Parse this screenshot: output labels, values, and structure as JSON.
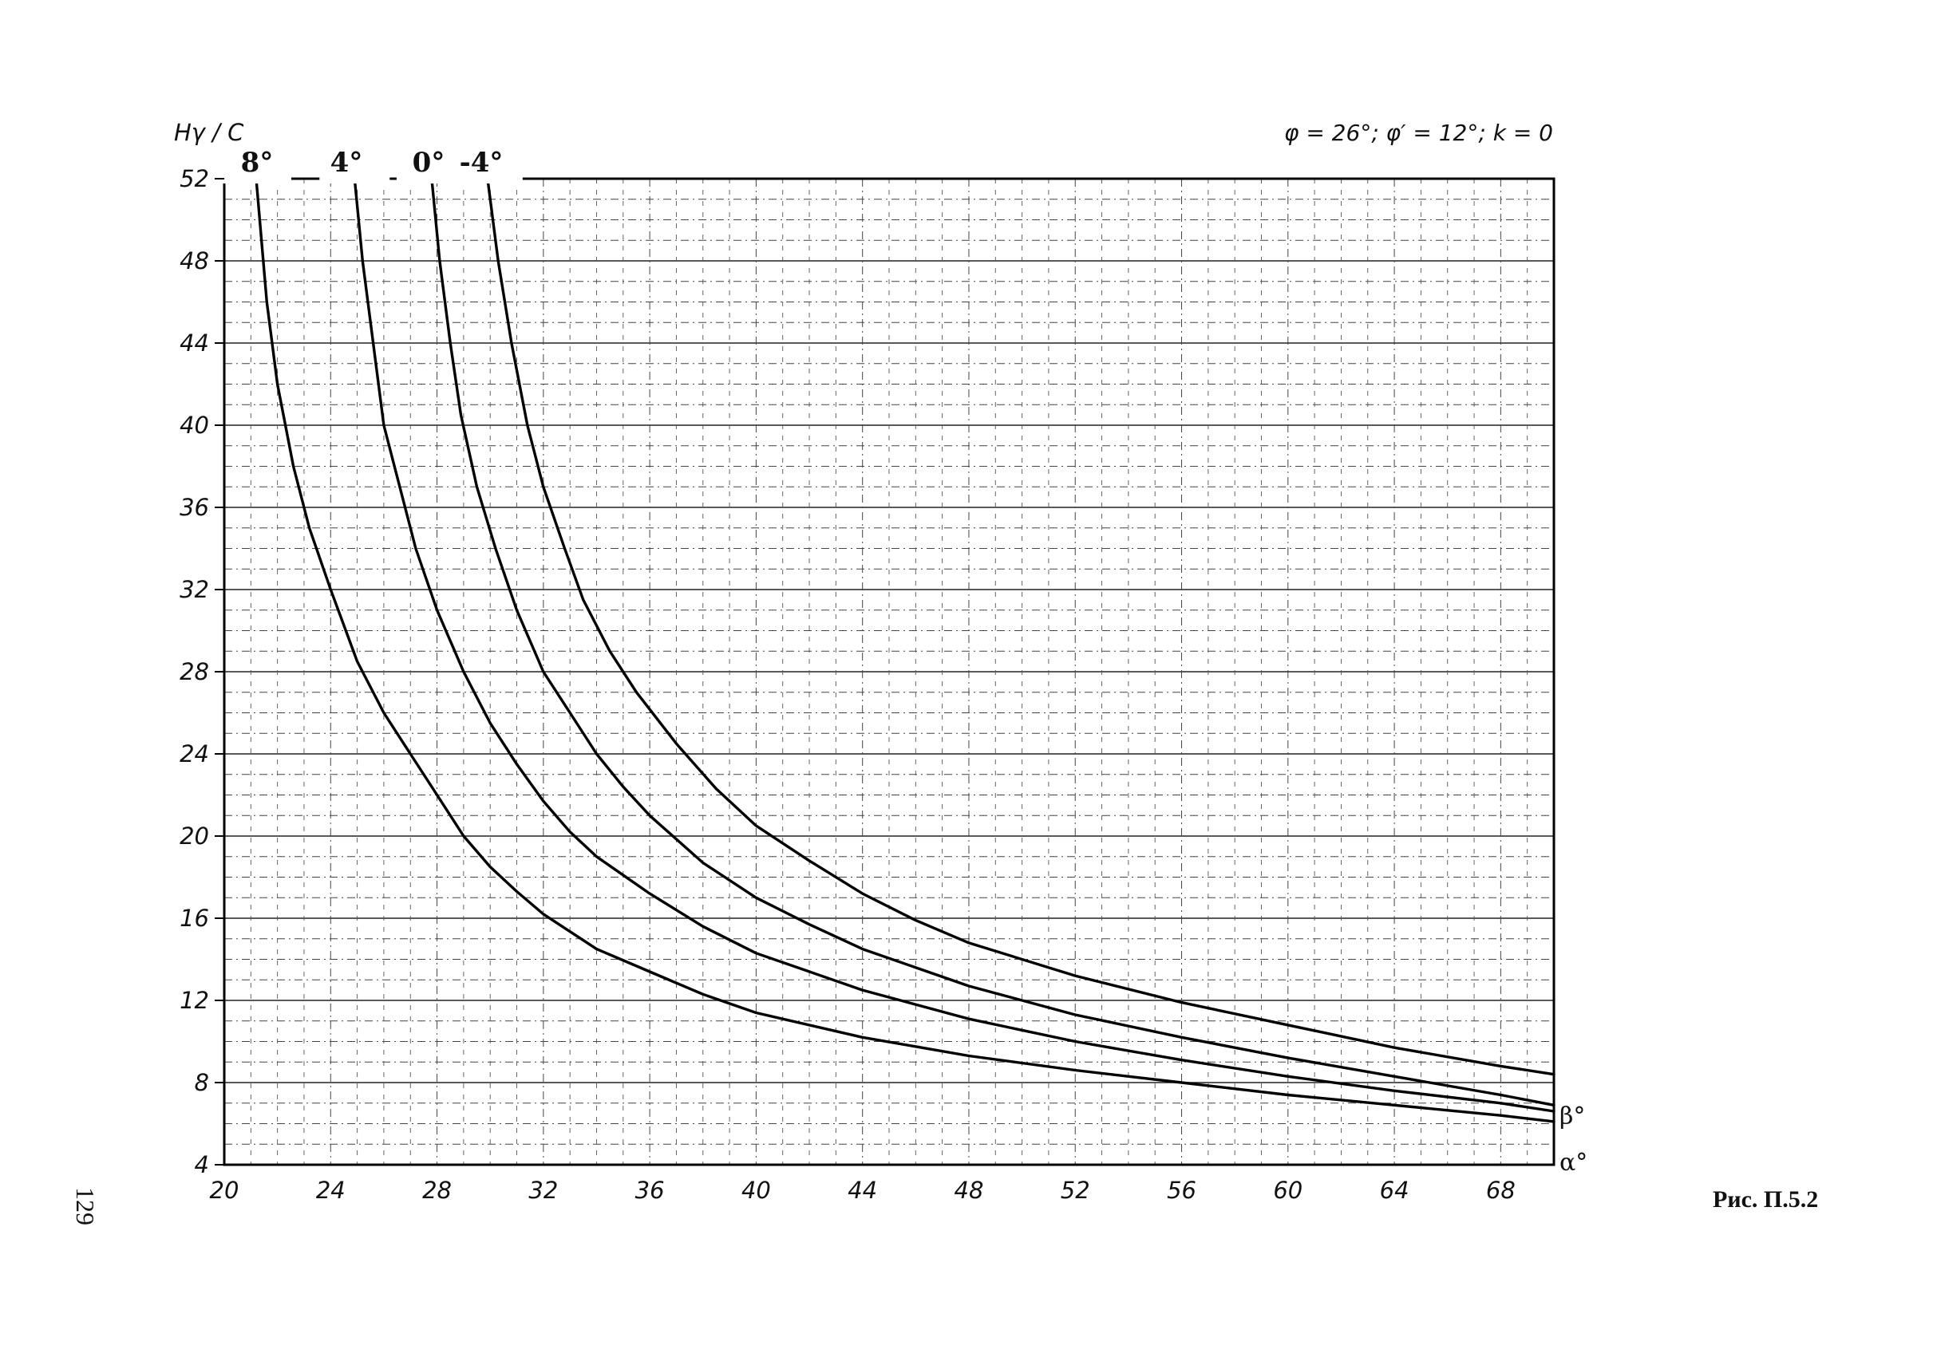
{
  "chart_data": {
    "type": "line",
    "ylabel": "Hγ / C",
    "params": "φ = 26°; φ′ = 12°; k = 0",
    "x_axis_name": "α°",
    "series_axis_name": "β°",
    "xlim": [
      20,
      70
    ],
    "ylim": [
      4,
      52
    ],
    "x_ticks": [
      "20",
      "24",
      "28",
      "32",
      "36",
      "40",
      "44",
      "48",
      "52",
      "56",
      "60",
      "64",
      "68"
    ],
    "y_ticks": [
      "4",
      "8",
      "12",
      "16",
      "20",
      "24",
      "28",
      "32",
      "36",
      "40",
      "44",
      "48",
      "52"
    ],
    "grid": true,
    "series": [
      {
        "name": "8°",
        "points": [
          [
            21.2,
            52
          ],
          [
            21.6,
            46
          ],
          [
            22,
            42
          ],
          [
            22.6,
            38
          ],
          [
            23.2,
            35
          ],
          [
            24,
            32
          ],
          [
            25,
            28.5
          ],
          [
            26,
            26
          ],
          [
            27,
            24
          ],
          [
            28,
            22
          ],
          [
            29,
            20
          ],
          [
            30,
            18.5
          ],
          [
            31,
            17.3
          ],
          [
            32,
            16.2
          ],
          [
            34,
            14.5
          ],
          [
            36,
            13.4
          ],
          [
            38,
            12.3
          ],
          [
            40,
            11.4
          ],
          [
            44,
            10.2
          ],
          [
            48,
            9.3
          ],
          [
            52,
            8.6
          ],
          [
            56,
            8
          ],
          [
            60,
            7.4
          ],
          [
            64,
            6.9
          ],
          [
            68,
            6.4
          ],
          [
            70,
            6.1
          ]
        ]
      },
      {
        "name": "4°",
        "points": [
          [
            24.9,
            52
          ],
          [
            25.2,
            48
          ],
          [
            25.6,
            44
          ],
          [
            26,
            40
          ],
          [
            26.6,
            37
          ],
          [
            27.2,
            34
          ],
          [
            28,
            31
          ],
          [
            29,
            28
          ],
          [
            30,
            25.5
          ],
          [
            31,
            23.5
          ],
          [
            32,
            21.7
          ],
          [
            33,
            20.2
          ],
          [
            34,
            19
          ],
          [
            36,
            17.2
          ],
          [
            38,
            15.6
          ],
          [
            40,
            14.3
          ],
          [
            44,
            12.5
          ],
          [
            48,
            11.1
          ],
          [
            52,
            10
          ],
          [
            56,
            9.1
          ],
          [
            60,
            8.3
          ],
          [
            64,
            7.6
          ],
          [
            68,
            7
          ],
          [
            70,
            6.6
          ]
        ]
      },
      {
        "name": "0°",
        "points": [
          [
            27.8,
            52
          ],
          [
            28.1,
            48
          ],
          [
            28.5,
            44
          ],
          [
            28.9,
            40.5
          ],
          [
            29.5,
            37
          ],
          [
            30.2,
            34
          ],
          [
            31,
            31
          ],
          [
            32,
            28
          ],
          [
            33,
            26
          ],
          [
            34,
            24
          ],
          [
            35,
            22.4
          ],
          [
            36,
            21
          ],
          [
            38,
            18.7
          ],
          [
            40,
            17
          ],
          [
            42,
            15.7
          ],
          [
            44,
            14.5
          ],
          [
            48,
            12.7
          ],
          [
            52,
            11.3
          ],
          [
            56,
            10.2
          ],
          [
            60,
            9.2
          ],
          [
            64,
            8.3
          ],
          [
            68,
            7.4
          ],
          [
            70,
            6.9
          ]
        ]
      },
      {
        "name": "-4°",
        "points": [
          [
            29.9,
            52
          ],
          [
            30.3,
            48
          ],
          [
            30.8,
            44
          ],
          [
            31.4,
            40
          ],
          [
            32,
            37
          ],
          [
            32.8,
            34
          ],
          [
            33.5,
            31.5
          ],
          [
            34.5,
            29
          ],
          [
            35.5,
            27
          ],
          [
            37,
            24.5
          ],
          [
            38.5,
            22.3
          ],
          [
            40,
            20.5
          ],
          [
            42,
            18.8
          ],
          [
            44,
            17.2
          ],
          [
            46,
            15.9
          ],
          [
            48,
            14.8
          ],
          [
            52,
            13.2
          ],
          [
            56,
            11.9
          ],
          [
            60,
            10.8
          ],
          [
            64,
            9.7
          ],
          [
            68,
            8.8
          ],
          [
            70,
            8.4
          ]
        ]
      }
    ]
  },
  "caption": "Рис. П.5.2",
  "page_number": "129"
}
